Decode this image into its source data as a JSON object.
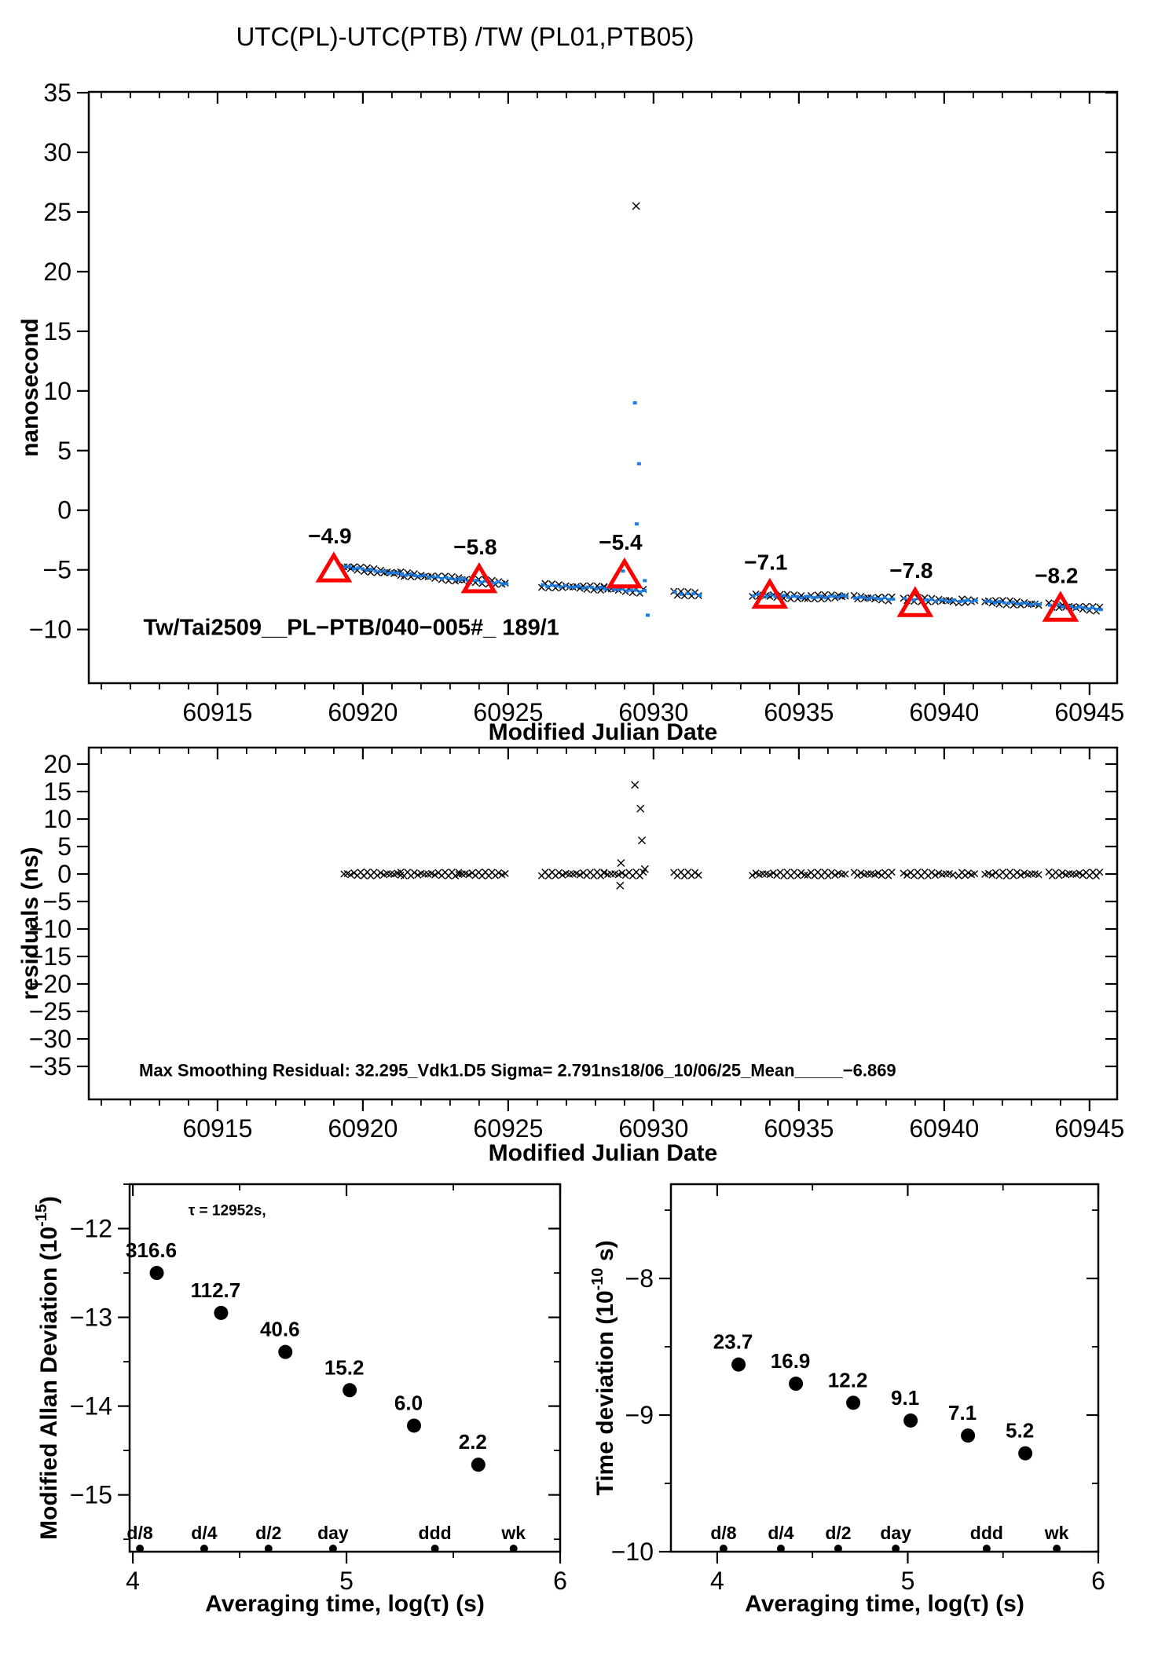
{
  "title": "UTC(PL)-UTC(PTB)  /TW  (PL01,PTB05)",
  "colors": {
    "accent_red": "#ff0000",
    "data_blue": "#1c7ce0",
    "ink": "#000000"
  },
  "chart_data": [
    {
      "id": "tw_offset",
      "type": "scatter",
      "xlabel": "Modified Julian Date",
      "ylabel": "nanosecond",
      "xlim": [
        60910.57,
        60945.95
      ],
      "ylim": [
        -14.5,
        35.07
      ],
      "xticks": [
        60915,
        60920,
        60925,
        60930,
        60935,
        60940,
        60945
      ],
      "xminor": 1,
      "yticks": [
        -10,
        -5,
        0,
        5,
        10,
        15,
        20,
        25,
        30,
        35
      ],
      "segment_format": "[mjd_start, mjd_end, ns_start, ns_end, n_points]",
      "black_segments": [
        [
          60919.35,
          60921.3,
          -4.75,
          -5.35,
          18
        ],
        [
          60921.3,
          60923.3,
          -5.35,
          -5.8,
          18
        ],
        [
          60923.3,
          60924.9,
          -5.8,
          -6.15,
          15
        ],
        [
          60926.15,
          60928.3,
          -6.3,
          -6.55,
          19
        ],
        [
          60928.3,
          60929.65,
          -6.55,
          -6.8,
          12
        ],
        [
          60930.7,
          60931.55,
          -6.95,
          -7.05,
          8
        ],
        [
          60933.4,
          60935.2,
          -7.1,
          -7.3,
          16
        ],
        [
          60935.3,
          60936.6,
          -7.3,
          -7.2,
          12
        ],
        [
          60936.9,
          60938.2,
          -7.3,
          -7.45,
          12
        ],
        [
          60938.6,
          60940.3,
          -7.45,
          -7.6,
          15
        ],
        [
          60940.5,
          60941.05,
          -7.6,
          -7.6,
          6
        ],
        [
          60941.4,
          60943.25,
          -7.65,
          -7.9,
          16
        ],
        [
          60943.6,
          60945.35,
          -7.95,
          -8.3,
          16
        ]
      ],
      "blue_segments": [
        [
          60919.35,
          60921.3,
          -4.75,
          -5.35,
          14
        ],
        [
          60921.3,
          60923.3,
          -5.35,
          -5.8,
          14
        ],
        [
          60923.3,
          60924.9,
          -5.8,
          -6.15,
          12
        ],
        [
          60926.15,
          60928.3,
          -6.3,
          -6.55,
          15
        ],
        [
          60928.3,
          60929.65,
          -6.55,
          -6.8,
          10
        ],
        [
          60930.7,
          60931.55,
          -6.95,
          -7.05,
          5
        ],
        [
          60933.4,
          60935.2,
          -7.1,
          -7.3,
          13
        ],
        [
          60935.3,
          60936.6,
          -7.3,
          -7.2,
          10
        ],
        [
          60936.9,
          60938.2,
          -7.3,
          -7.45,
          10
        ],
        [
          60938.6,
          60940.3,
          -7.45,
          -7.6,
          12
        ],
        [
          60940.5,
          60941.05,
          -7.6,
          -7.6,
          5
        ],
        [
          60941.4,
          60943.25,
          -7.65,
          -7.9,
          13
        ],
        [
          60943.6,
          60945.35,
          -7.95,
          -8.3,
          13
        ]
      ],
      "black_jitter": 0.18,
      "blue_jitter": 0.08,
      "black_points": [
        [
          60929.4,
          25.5
        ]
      ],
      "blue_points": [
        [
          60929.36,
          9.0
        ],
        [
          60929.5,
          3.9
        ],
        [
          60929.42,
          -1.15
        ],
        [
          60928.95,
          -5.1
        ],
        [
          60929.7,
          -5.9
        ],
        [
          60929.8,
          -8.8
        ]
      ],
      "calibrations": [
        {
          "mjd": 60919,
          "ns": -4.9,
          "label": "-4.9"
        },
        {
          "mjd": 60924,
          "ns": -5.8,
          "label": "-5.8"
        },
        {
          "mjd": 60929,
          "ns": -5.4,
          "label": "-5.4"
        },
        {
          "mjd": 60934,
          "ns": -7.1,
          "label": "-7.1"
        },
        {
          "mjd": 60939,
          "ns": -7.8,
          "label": "-7.8"
        },
        {
          "mjd": 60944,
          "ns": -8.2,
          "label": "-8.2"
        }
      ],
      "annotations": [
        {
          "x": 60912.45,
          "y": -10.45,
          "text": "Tw/Tai2509__PL-PTB/040-005#_  189/1",
          "size": 29,
          "weight": "bold",
          "anchor": "start"
        }
      ]
    },
    {
      "id": "residuals",
      "type": "scatter",
      "xlabel": "Modified Julian Date",
      "ylabel": "residuals (ns)",
      "xlim": [
        60910.57,
        60945.95
      ],
      "ylim": [
        -41.0,
        23.0
      ],
      "xticks": [
        60915,
        60920,
        60925,
        60930,
        60935,
        60940,
        60945
      ],
      "xminor": 1,
      "yticks": [
        -35,
        -30,
        -25,
        -20,
        -15,
        -10,
        -5,
        0,
        5,
        10,
        15,
        20
      ],
      "segment_format": "[mjd_start, mjd_end, ns_start, ns_end, n_points]",
      "black_segments": [
        [
          60919.35,
          60921.3,
          0,
          0,
          18
        ],
        [
          60921.3,
          60923.3,
          0,
          0,
          18
        ],
        [
          60923.3,
          60924.9,
          0,
          0,
          15
        ],
        [
          60926.15,
          60928.3,
          0,
          0,
          19
        ],
        [
          60928.3,
          60929.65,
          0,
          0,
          12
        ],
        [
          60930.7,
          60931.55,
          0,
          0,
          8
        ],
        [
          60933.4,
          60935.2,
          0,
          0,
          16
        ],
        [
          60935.3,
          60936.6,
          0,
          0,
          12
        ],
        [
          60936.9,
          60938.2,
          0,
          0,
          12
        ],
        [
          60938.6,
          60940.3,
          0,
          0,
          15
        ],
        [
          60940.5,
          60941.05,
          0,
          0,
          6
        ],
        [
          60941.4,
          60943.25,
          0,
          0,
          16
        ],
        [
          60943.6,
          60945.35,
          0,
          0,
          16
        ]
      ],
      "black_jitter": 0.35,
      "black_points": [
        [
          60928.88,
          2.0
        ],
        [
          60928.85,
          -2.1
        ],
        [
          60929.36,
          16.2
        ],
        [
          60929.55,
          11.9
        ],
        [
          60929.6,
          6.1
        ],
        [
          60929.7,
          0.9
        ]
      ],
      "annotations": [
        {
          "x": 60912.3,
          "y": -36.8,
          "text": "Max Smoothing Residual: 32.295_Vdk1.D5  Sigma= 2.791ns18/06_10/06/25_Mean_____-6.869",
          "size": 22,
          "weight": "bold",
          "anchor": "start"
        }
      ]
    },
    {
      "id": "mdev",
      "type": "scatter",
      "xlabel": "Averaging time, log(τ) (s)",
      "ylabel_parts": [
        {
          "t": "Modified Allan Deviation (10"
        },
        {
          "t": "-15",
          "sup": true
        },
        {
          "t": ")"
        }
      ],
      "xlim": [
        3.985,
        6.0
      ],
      "ylim": [
        -15.64,
        -11.5
      ],
      "xticks": [
        4,
        5,
        6
      ],
      "xminor": 0.5,
      "yticks": [
        -15,
        -14,
        -13,
        -12
      ],
      "yminor": 0.5,
      "points": [
        {
          "x": 4.112,
          "y": -12.5,
          "label": "316.6"
        },
        {
          "x": 4.413,
          "y": -12.95,
          "label": "112.7"
        },
        {
          "x": 4.714,
          "y": -13.39,
          "label": "40.6"
        },
        {
          "x": 5.015,
          "y": -13.82,
          "label": "15.2"
        },
        {
          "x": 5.316,
          "y": -14.22,
          "label": "6.0"
        },
        {
          "x": 5.617,
          "y": -14.66,
          "label": "2.2"
        }
      ],
      "tau_marks": [
        {
          "label": "d/8",
          "log": 4.033
        },
        {
          "label": "d/4",
          "log": 4.334
        },
        {
          "label": "d/2",
          "log": 4.635
        },
        {
          "label": "day",
          "log": 4.937
        },
        {
          "label": "ddd",
          "log": 5.414
        },
        {
          "label": "wk",
          "log": 5.782
        }
      ],
      "annotations": [
        {
          "x": 4.26,
          "y": -11.85,
          "text": "τ = 12952s,",
          "size": 19,
          "weight": "bold",
          "anchor": "start"
        }
      ]
    },
    {
      "id": "tdev",
      "type": "scatter",
      "xlabel": "Averaging time, log(τ) (s)",
      "ylabel_parts": [
        {
          "t": "Time deviation (10"
        },
        {
          "t": "-10",
          "sup": true
        },
        {
          "t": " s)"
        }
      ],
      "xlim": [
        3.757,
        6.0
      ],
      "ylim": [
        -10.0,
        -7.31
      ],
      "xticks": [
        4,
        5,
        6
      ],
      "xminor": 0.5,
      "yticks": [
        -10,
        -9,
        -8
      ],
      "yminor": 0.5,
      "points": [
        {
          "x": 4.112,
          "y": -8.63,
          "label": "23.7"
        },
        {
          "x": 4.413,
          "y": -8.77,
          "label": "16.9"
        },
        {
          "x": 4.714,
          "y": -8.91,
          "label": "12.2"
        },
        {
          "x": 5.015,
          "y": -9.04,
          "label": "9.1"
        },
        {
          "x": 5.316,
          "y": -9.15,
          "label": "7.1"
        },
        {
          "x": 5.617,
          "y": -9.28,
          "label": "5.2"
        }
      ],
      "tau_marks": [
        {
          "label": "d/8",
          "log": 4.033
        },
        {
          "label": "d/4",
          "log": 4.334
        },
        {
          "label": "d/2",
          "log": 4.635
        },
        {
          "label": "day",
          "log": 4.937
        },
        {
          "label": "ddd",
          "log": 5.414
        },
        {
          "label": "wk",
          "log": 5.782
        }
      ]
    }
  ]
}
